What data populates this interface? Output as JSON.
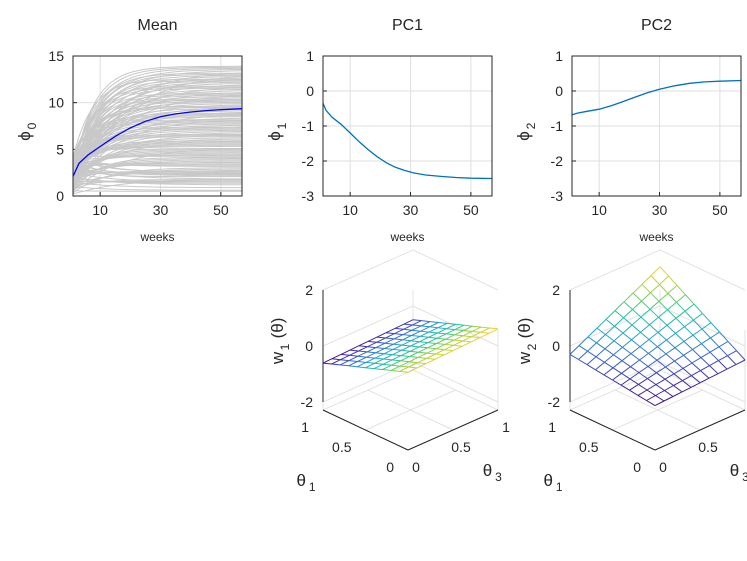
{
  "chart_data": [
    {
      "type": "line",
      "title": "Mean",
      "xlabel": "weeks",
      "ylabel": "ϕ",
      "ylabel_sub": "0",
      "xlim": [
        1,
        57
      ],
      "ylim": [
        0,
        15
      ],
      "xticks": [
        10,
        30,
        50
      ],
      "yticks": [
        0,
        5,
        10,
        15
      ],
      "x": [
        1,
        3,
        6,
        10,
        15,
        20,
        25,
        30,
        35,
        40,
        45,
        50,
        57
      ],
      "series": [
        {
          "name": "mean",
          "color": "#0000ff",
          "values": [
            2.1,
            3.5,
            4.4,
            5.3,
            6.4,
            7.3,
            8.0,
            8.5,
            8.8,
            9.0,
            9.15,
            9.25,
            9.35
          ]
        }
      ],
      "background_curves": {
        "color": "#c8c8c8",
        "count": 120,
        "start_range": [
          0.2,
          4.5
        ],
        "end_range": [
          0.0,
          14.0
        ]
      }
    },
    {
      "type": "line",
      "title": "PC1",
      "xlabel": "weeks",
      "ylabel": "ϕ",
      "ylabel_sub": "1",
      "xlim": [
        1,
        57
      ],
      "ylim": [
        -3,
        1
      ],
      "xticks": [
        10,
        30,
        50
      ],
      "yticks": [
        -3,
        -2,
        -1,
        0,
        1
      ],
      "x": [
        1,
        2,
        4,
        7,
        10,
        13,
        16,
        19,
        22,
        25,
        28,
        31,
        35,
        40,
        45,
        50,
        57
      ],
      "series": [
        {
          "name": "PC1",
          "color": "#0072bd",
          "values": [
            -0.35,
            -0.55,
            -0.75,
            -0.95,
            -1.2,
            -1.45,
            -1.68,
            -1.88,
            -2.05,
            -2.18,
            -2.27,
            -2.34,
            -2.4,
            -2.44,
            -2.47,
            -2.49,
            -2.5
          ]
        }
      ]
    },
    {
      "type": "line",
      "title": "PC2",
      "xlabel": "weeks",
      "ylabel": "ϕ",
      "ylabel_sub": "2",
      "xlim": [
        1,
        57
      ],
      "ylim": [
        -3,
        1
      ],
      "xticks": [
        10,
        30,
        50
      ],
      "yticks": [
        -3,
        -2,
        -1,
        0,
        1
      ],
      "x": [
        1,
        3,
        6,
        10,
        14,
        18,
        22,
        26,
        30,
        35,
        40,
        45,
        50,
        57
      ],
      "series": [
        {
          "name": "PC2",
          "color": "#0072bd",
          "values": [
            -0.68,
            -0.63,
            -0.58,
            -0.52,
            -0.42,
            -0.3,
            -0.17,
            -0.05,
            0.05,
            0.15,
            0.22,
            0.26,
            0.28,
            0.3
          ]
        }
      ]
    },
    {
      "type": "surface",
      "zlabel": "w",
      "zlabel_sub": "1",
      "zlabel_tail": "(θ)",
      "zticks": [
        "2",
        "0",
        "-2"
      ],
      "x_axis": {
        "label": "θ",
        "sub": "1",
        "ticks": [
          "1",
          "0.5",
          "0"
        ]
      },
      "y_axis": {
        "label": "θ",
        "sub": "3",
        "ticks": [
          "0",
          "0.5",
          "1"
        ]
      },
      "colormap": [
        "#440d8a",
        "#3b5fd0",
        "#24a5c9",
        "#29c59a",
        "#a6d23c",
        "#f5d03a"
      ],
      "description": "nearly flat surface, low near theta1=1 and high near theta1=0"
    },
    {
      "type": "surface",
      "zlabel": "w",
      "zlabel_sub": "2",
      "zlabel_tail": "(θ)",
      "zticks": [
        "2",
        "0",
        "-2"
      ],
      "x_axis": {
        "label": "θ",
        "sub": "1",
        "ticks": [
          "1",
          "0.5",
          "0"
        ]
      },
      "y_axis": {
        "label": "θ",
        "sub": "3",
        "ticks": [
          "0",
          "0.5"
        ]
      },
      "colormap": [
        "#440d8a",
        "#3b5fd0",
        "#24a5c9",
        "#29c59a",
        "#a6d23c",
        "#f5d03a"
      ],
      "description": "tilted surface rising toward the back corner"
    }
  ]
}
